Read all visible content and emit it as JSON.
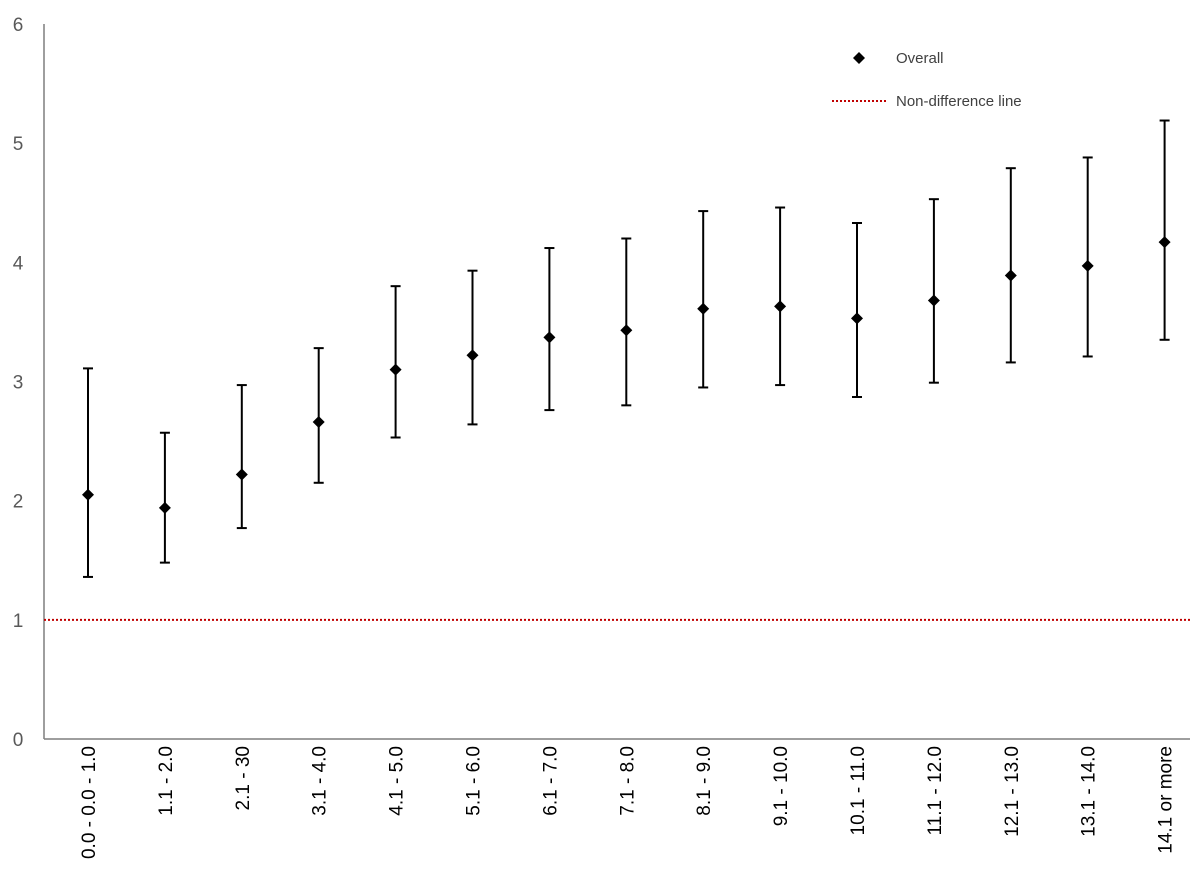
{
  "chart_data": {
    "type": "scatter",
    "title": "",
    "xlabel": "",
    "ylabel": "",
    "ylim": [
      0,
      6
    ],
    "yticks": [
      "0",
      "1",
      "2",
      "3",
      "4",
      "5",
      "6"
    ],
    "categories": [
      "0.0 - 0.0 - 1.0",
      "1.1 - 2.0",
      "2.1 - 30",
      "3.1 - 4.0",
      "4.1 - 5.0",
      "5.1 - 6.0",
      "6.1 - 7.0",
      "7.1 - 8.0",
      "8.1 - 9.0",
      "9.1 - 10.0",
      "10.1 - 11.0",
      "11.1 - 12.0",
      "12.1 - 13.0",
      "13.1 - 14.0",
      "14.1 or more"
    ],
    "series": [
      {
        "name": "Overall",
        "values": [
          2.05,
          1.94,
          2.22,
          2.66,
          3.1,
          3.22,
          3.37,
          3.43,
          3.61,
          3.63,
          3.53,
          3.68,
          3.89,
          3.97,
          4.17
        ],
        "lower": [
          1.36,
          1.48,
          1.77,
          2.15,
          2.53,
          2.64,
          2.76,
          2.8,
          2.95,
          2.97,
          2.87,
          2.99,
          3.16,
          3.21,
          3.35
        ],
        "upper": [
          3.11,
          2.57,
          2.97,
          3.28,
          3.8,
          3.93,
          4.12,
          4.2,
          4.43,
          4.46,
          4.33,
          4.53,
          4.79,
          4.88,
          5.19
        ],
        "color": "#000000"
      }
    ],
    "reference_line": {
      "name": "Non-difference line",
      "value": 1,
      "color": "#c00000"
    },
    "legend": {
      "position": "top-right",
      "entries": [
        "Overall",
        "Non-difference line"
      ]
    },
    "grid": false
  }
}
